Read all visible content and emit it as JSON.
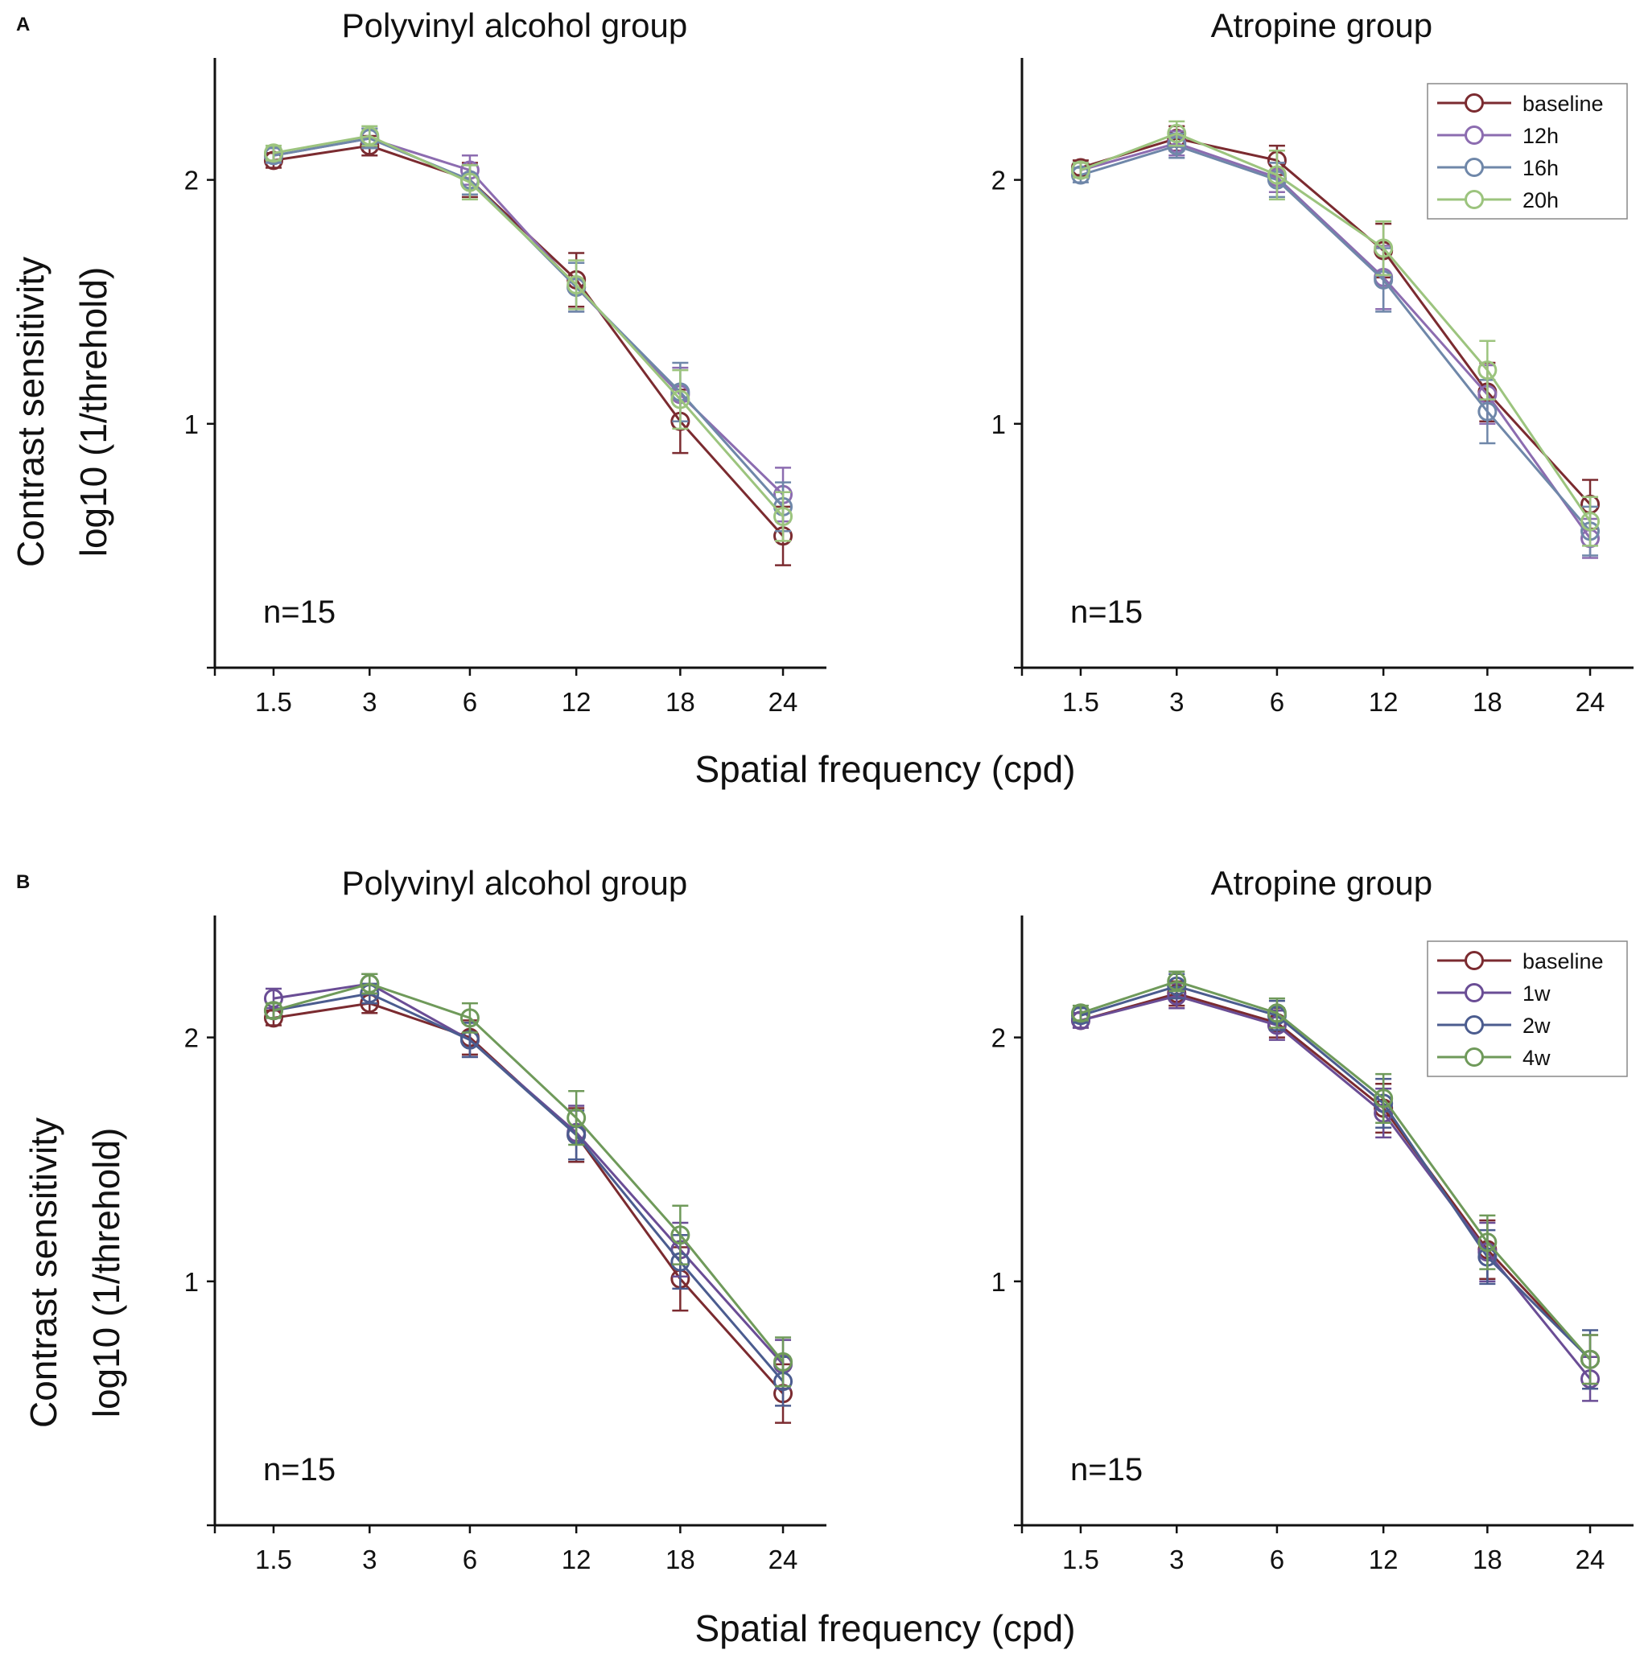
{
  "panel_letters": [
    "A",
    "B"
  ],
  "xlabel": "Spatial frequency (cpd)",
  "ylabel_line1": "Contrast sensitivity",
  "ylabel_line2": "log10 (1/threhold)",
  "n_label": "n=15",
  "chart_data": [
    {
      "type": "line",
      "panel": "A",
      "title": "Polyvinyl alcohol group",
      "categories": [
        "1.5",
        "3",
        "6",
        "12",
        "18",
        "24"
      ],
      "ylim": [
        0,
        2.5
      ],
      "yticks": [
        1,
        2
      ],
      "series": [
        {
          "name": "baseline",
          "color": "#7b2b30",
          "values": [
            2.08,
            2.14,
            2.0,
            1.59,
            1.01,
            0.54
          ],
          "errors": [
            0.03,
            0.04,
            0.07,
            0.11,
            0.13,
            0.12
          ]
        },
        {
          "name": "12h",
          "color": "#8c6cb0",
          "values": [
            2.1,
            2.17,
            2.04,
            1.56,
            1.12,
            0.71
          ],
          "errors": [
            0.03,
            0.04,
            0.06,
            0.1,
            0.11,
            0.11
          ]
        },
        {
          "name": "16h",
          "color": "#6f87a9",
          "values": [
            2.1,
            2.17,
            2.0,
            1.56,
            1.13,
            0.66
          ],
          "errors": [
            0.03,
            0.04,
            0.06,
            0.1,
            0.12,
            0.1
          ]
        },
        {
          "name": "20h",
          "color": "#9cc47e",
          "values": [
            2.11,
            2.18,
            1.99,
            1.57,
            1.1,
            0.62
          ],
          "errors": [
            0.03,
            0.04,
            0.07,
            0.1,
            0.12,
            0.1
          ]
        }
      ]
    },
    {
      "type": "line",
      "panel": "A",
      "title": "Atropine group",
      "categories": [
        "1.5",
        "3",
        "6",
        "12",
        "18",
        "24"
      ],
      "ylim": [
        0,
        2.5
      ],
      "yticks": [
        1,
        2
      ],
      "legend_position": "top-right",
      "series": [
        {
          "name": "baseline",
          "color": "#7b2b30",
          "values": [
            2.05,
            2.17,
            2.08,
            1.71,
            1.13,
            0.67
          ],
          "errors": [
            0.03,
            0.05,
            0.06,
            0.11,
            0.12,
            0.1
          ]
        },
        {
          "name": "12h",
          "color": "#8c6cb0",
          "values": [
            2.04,
            2.15,
            2.01,
            1.6,
            1.12,
            0.53
          ],
          "errors": [
            0.03,
            0.05,
            0.06,
            0.13,
            0.12,
            0.08
          ]
        },
        {
          "name": "16h",
          "color": "#6f87a9",
          "values": [
            2.02,
            2.14,
            2.0,
            1.59,
            1.05,
            0.56
          ],
          "errors": [
            0.03,
            0.05,
            0.07,
            0.13,
            0.13,
            0.1
          ]
        },
        {
          "name": "20h",
          "color": "#9cc47e",
          "values": [
            2.04,
            2.19,
            2.02,
            1.72,
            1.22,
            0.6
          ],
          "errors": [
            0.03,
            0.05,
            0.1,
            0.11,
            0.12,
            0.1
          ]
        }
      ]
    },
    {
      "type": "line",
      "panel": "B",
      "title": "Polyvinyl alcohol group",
      "categories": [
        "1.5",
        "3",
        "6",
        "12",
        "18",
        "24"
      ],
      "ylim": [
        0,
        2.5
      ],
      "yticks": [
        1,
        2
      ],
      "series": [
        {
          "name": "baseline",
          "color": "#7b2b30",
          "values": [
            2.08,
            2.14,
            2.0,
            1.6,
            1.01,
            0.54
          ],
          "errors": [
            0.03,
            0.04,
            0.07,
            0.11,
            0.13,
            0.12
          ]
        },
        {
          "name": "1w",
          "color": "#6a4d95",
          "values": [
            2.16,
            2.22,
            1.99,
            1.61,
            1.13,
            0.66
          ],
          "errors": [
            0.04,
            0.04,
            0.07,
            0.11,
            0.11,
            0.1
          ]
        },
        {
          "name": "2w",
          "color": "#4b5c8f",
          "values": [
            2.11,
            2.18,
            1.99,
            1.6,
            1.08,
            0.59
          ],
          "errors": [
            0.03,
            0.04,
            0.07,
            0.1,
            0.11,
            0.1
          ]
        },
        {
          "name": "4w",
          "color": "#6f9a5a",
          "values": [
            2.11,
            2.22,
            2.08,
            1.67,
            1.19,
            0.67
          ],
          "errors": [
            0.03,
            0.04,
            0.06,
            0.11,
            0.12,
            0.1
          ]
        }
      ]
    },
    {
      "type": "line",
      "panel": "B",
      "title": "Atropine group",
      "categories": [
        "1.5",
        "3",
        "6",
        "12",
        "18",
        "24"
      ],
      "ylim": [
        0,
        2.5
      ],
      "yticks": [
        1,
        2
      ],
      "legend_position": "top-right",
      "series": [
        {
          "name": "baseline",
          "color": "#7b2b30",
          "values": [
            2.07,
            2.18,
            2.06,
            1.71,
            1.13,
            0.68
          ],
          "errors": [
            0.03,
            0.05,
            0.06,
            0.1,
            0.12,
            0.1
          ]
        },
        {
          "name": "1w",
          "color": "#6a4d95",
          "values": [
            2.07,
            2.17,
            2.05,
            1.69,
            1.12,
            0.6
          ],
          "errors": [
            0.03,
            0.05,
            0.06,
            0.1,
            0.12,
            0.09
          ]
        },
        {
          "name": "2w",
          "color": "#4b5c8f",
          "values": [
            2.09,
            2.21,
            2.09,
            1.73,
            1.1,
            0.68
          ],
          "errors": [
            0.03,
            0.05,
            0.06,
            0.1,
            0.11,
            0.12
          ]
        },
        {
          "name": "4w",
          "color": "#6f9a5a",
          "values": [
            2.1,
            2.23,
            2.1,
            1.75,
            1.16,
            0.68
          ],
          "errors": [
            0.03,
            0.04,
            0.06,
            0.1,
            0.11,
            0.1
          ]
        }
      ]
    }
  ]
}
